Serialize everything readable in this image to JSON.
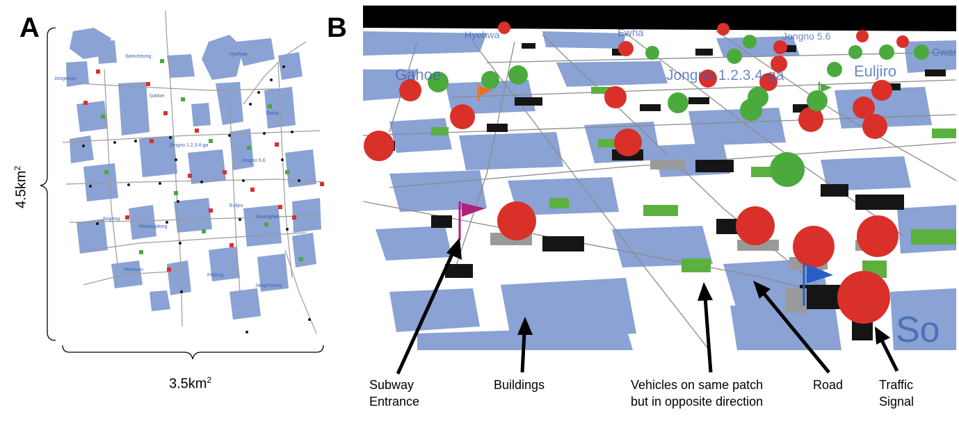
{
  "panels": {
    "a_label": "A",
    "b_label": "B"
  },
  "panel_a": {
    "height_value": "4.5km",
    "height_sup": "2",
    "width_value": "3.5km",
    "width_sup": "2",
    "map_labels": [
      "Samcheong",
      "Hyehwa",
      "Jongwoon",
      "Gahoe",
      "Ewha",
      "Jongno 1.2.3.4-ga",
      "Jongno 5.6",
      "Eulijro",
      "Gwanghee",
      "Sogong",
      "Myeongdong",
      "Hoehyun",
      "Pildong",
      "Jangchoong"
    ]
  },
  "panel_b": {
    "scene_labels": [
      "Hyehwa",
      "Ewha",
      "Jongno 5.6",
      "Gahoe",
      "Jongno 1.2.3.4-ga",
      "Euljiro",
      "Gwang",
      "So"
    ]
  },
  "callouts": {
    "subway": [
      "Subway",
      "Entrance"
    ],
    "buildings": "Buildings",
    "vehicles": [
      "Vehicles on same patch",
      "but in opposite direction"
    ],
    "road": "Road",
    "signal": [
      "Traffic",
      "Signal"
    ]
  },
  "colors": {
    "building": "#8aa2d4",
    "signal_red": "#d9302a",
    "signal_green": "#4aaa3c",
    "vehicle_black": "#151515",
    "vehicle_green": "#5cb040",
    "flag_magenta": "#b0207a",
    "flag_blue": "#2a5cc8",
    "flag_orange": "#e8701a",
    "sky": "#000000"
  }
}
